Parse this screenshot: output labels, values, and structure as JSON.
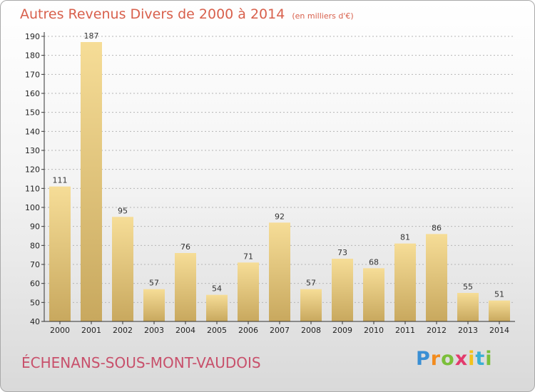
{
  "header": {
    "title": "Autres Revenus Divers de 2000 à 2014",
    "subtitle": "(en milliers d'€)"
  },
  "footer": {
    "commune": "ÉCHENANS-SOUS-MONT-VAUDOIS",
    "logo_letters": [
      "P",
      "r",
      "o",
      "x",
      "i",
      "t",
      "i"
    ],
    "logo_colors": [
      "#3a8fd4",
      "#f28b1d",
      "#7bbf3a",
      "#e33a6c",
      "#f2c21d",
      "#3ab0d4",
      "#7bbf3a"
    ]
  },
  "colors": {
    "title": "#d8604c",
    "bar_light": "#f6dd97",
    "bar_dark": "#c8a85e",
    "axis": "#333333"
  },
  "chart_data": {
    "type": "bar",
    "categories": [
      "2000",
      "2001",
      "2002",
      "2003",
      "2004",
      "2005",
      "2006",
      "2007",
      "2008",
      "2009",
      "2010",
      "2011",
      "2012",
      "2013",
      "2014"
    ],
    "values": [
      111,
      187,
      95,
      57,
      76,
      54,
      71,
      92,
      57,
      73,
      68,
      81,
      86,
      55,
      51
    ],
    "ylim": [
      40,
      190
    ],
    "yticks": [
      40,
      50,
      60,
      70,
      80,
      90,
      100,
      110,
      120,
      130,
      140,
      150,
      160,
      170,
      180,
      190
    ],
    "grid": true,
    "data_labels": true
  }
}
